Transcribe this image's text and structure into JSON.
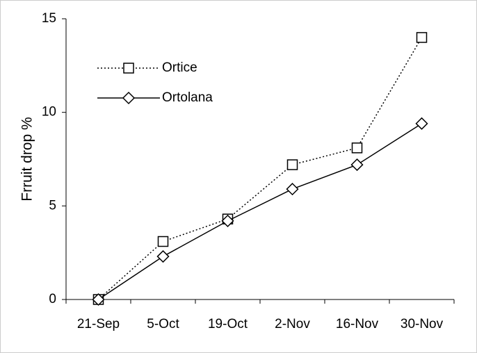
{
  "chart_data": {
    "type": "line",
    "title": null,
    "y_label": "Frruit drop %",
    "categories": [
      "21-Sep",
      "5-Oct",
      "19-Oct",
      "2-Nov",
      "16-Nov",
      "30-Nov"
    ],
    "series": [
      {
        "name": "Ortice",
        "color": "#000000",
        "dash": "dotted",
        "marker": "square",
        "values": [
          0,
          3.1,
          4.3,
          7.2,
          8.1,
          14.0
        ]
      },
      {
        "name": "Ortolana",
        "color": "#000000",
        "dash": "solid",
        "marker": "diamond",
        "values": [
          0,
          2.3,
          4.2,
          5.9,
          7.2,
          9.4
        ]
      }
    ],
    "ylim": [
      0,
      15
    ],
    "yticks": [
      0,
      5,
      10,
      15
    ],
    "grid": false,
    "legend": "upper left"
  }
}
